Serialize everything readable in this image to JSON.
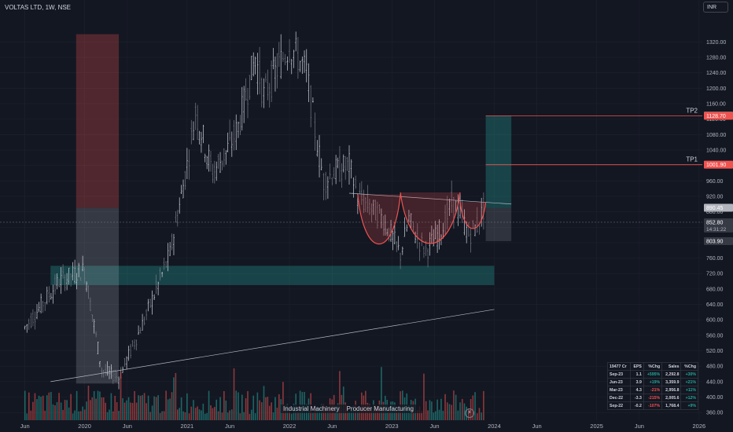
{
  "header": {
    "title": "VOLTAS LTD, 1W, NSE",
    "currency": "INR"
  },
  "colors": {
    "bg": "#131722",
    "up": "#26a69a",
    "down": "#ef5350",
    "grid": "#1e222d",
    "text": "#b2b5be"
  },
  "chart_data": {
    "type": "candlestick",
    "symbol": "VOLTAS LTD",
    "interval": "1W",
    "exchange": "NSE",
    "currency": "INR",
    "ylim": [
      340,
      1400
    ],
    "y_ticks": [
      360,
      400,
      440,
      480,
      520,
      560,
      600,
      640,
      680,
      720,
      760,
      800,
      840,
      880,
      920,
      960,
      1000,
      1040,
      1080,
      1120,
      1160,
      1200,
      1240,
      1280,
      1320
    ],
    "x_ticks": [
      "Jun",
      "2020",
      "Jun",
      "2021",
      "Jun",
      "2022",
      "Jun",
      "2023",
      "Jun",
      "2024",
      "Jun",
      "2025",
      "Jun",
      "2026"
    ],
    "key_points": [
      {
        "date": "2019-06",
        "price": 580
      },
      {
        "date": "2019-10",
        "price": 700
      },
      {
        "date": "2020-01",
        "price": 730
      },
      {
        "date": "2020-03",
        "price": 470
      },
      {
        "date": "2020-05",
        "price": 450
      },
      {
        "date": "2020-08",
        "price": 600
      },
      {
        "date": "2020-11",
        "price": 770
      },
      {
        "date": "2021-01",
        "price": 1000
      },
      {
        "date": "2021-02",
        "price": 1140
      },
      {
        "date": "2021-04",
        "price": 980
      },
      {
        "date": "2021-06",
        "price": 1050
      },
      {
        "date": "2021-07",
        "price": 1100
      },
      {
        "date": "2021-09",
        "price": 1280
      },
      {
        "date": "2021-10",
        "price": 1180
      },
      {
        "date": "2021-12",
        "price": 1270
      },
      {
        "date": "2022-01",
        "price": 1310
      },
      {
        "date": "2022-02",
        "price": 1280
      },
      {
        "date": "2022-03",
        "price": 1240
      },
      {
        "date": "2022-04",
        "price": 1090
      },
      {
        "date": "2022-05",
        "price": 960
      },
      {
        "date": "2022-06",
        "price": 980
      },
      {
        "date": "2022-08",
        "price": 1000
      },
      {
        "date": "2022-09",
        "price": 920
      },
      {
        "date": "2022-12",
        "price": 860
      },
      {
        "date": "2023-02",
        "price": 770
      },
      {
        "date": "2023-03",
        "price": 860
      },
      {
        "date": "2023-04",
        "price": 810
      },
      {
        "date": "2023-05",
        "price": 780
      },
      {
        "date": "2023-07",
        "price": 840
      },
      {
        "date": "2023-08",
        "price": 900
      },
      {
        "date": "2023-09",
        "price": 880
      },
      {
        "date": "2023-10",
        "price": 820
      },
      {
        "date": "2023-11",
        "price": 845
      },
      {
        "date": "2023-12",
        "price": 900
      }
    ],
    "levels": [
      {
        "label": "TP2",
        "price": 1128.7,
        "text": "1128.70"
      },
      {
        "label": "TP1",
        "price": 1001.9,
        "text": "1001.90"
      }
    ],
    "price_labels": [
      {
        "price": 1129.25,
        "text": "1129.25",
        "color": "#26a69a"
      },
      {
        "price": 1128.7,
        "text": "1128.70",
        "color": "#ef5350"
      },
      {
        "price": 1001.9,
        "text": "1001.90",
        "color": "#ef5350"
      },
      {
        "price": 890.45,
        "text": "890.45",
        "color": "#b2b5be"
      },
      {
        "price": 852.8,
        "text": "852.80",
        "sub": "14:31:22",
        "color": "#363a45"
      },
      {
        "price": 803.9,
        "text": "803.90",
        "color": "#363a45"
      }
    ],
    "zones": [
      {
        "name": "support-zone",
        "from": "2019-09",
        "to": "2024-01",
        "low": 690,
        "high": 740
      },
      {
        "name": "covid-drop-risk",
        "from": "2019-12",
        "to": "2020-05",
        "low": 890,
        "high": 1340
      },
      {
        "name": "covid-drop-range",
        "from": "2019-12",
        "to": "2020-05",
        "low": 435,
        "high": 890
      },
      {
        "name": "target-reward",
        "from": "2023-12",
        "to": "2024-03",
        "low": 890,
        "high": 1129
      },
      {
        "name": "target-stop",
        "from": "2023-12",
        "to": "2024-03",
        "low": 804,
        "high": 890
      }
    ],
    "grid": true
  },
  "eps_table": {
    "headers": [
      "19477 Cr",
      "EPS",
      "%Chg",
      "Sales",
      "%Chg"
    ],
    "rows": [
      {
        "period": "Sep-23",
        "eps": "1.1",
        "eps_chg": "+595%",
        "eps_dir": "pos",
        "sales": "2,292.8",
        "sales_chg": "+30%",
        "sales_dir": "pos"
      },
      {
        "period": "Jun-23",
        "eps": "3.9",
        "eps_chg": "+19%",
        "eps_dir": "pos",
        "sales": "3,359.9",
        "sales_chg": "+21%",
        "sales_dir": "pos"
      },
      {
        "period": "Mar-23",
        "eps": "4.3",
        "eps_chg": "-21%",
        "eps_dir": "neg",
        "sales": "2,956.8",
        "sales_chg": "+11%",
        "sales_dir": "pos"
      },
      {
        "period": "Dec-22",
        "eps": "-3.3",
        "eps_chg": "-215%",
        "eps_dir": "neg",
        "sales": "2,005.6",
        "sales_chg": "+12%",
        "sales_dir": "pos"
      },
      {
        "period": "Sep-22",
        "eps": "-0.2",
        "eps_chg": "-107%",
        "eps_dir": "neg",
        "sales": "1,768.4",
        "sales_chg": "+9%",
        "sales_dir": "pos"
      }
    ]
  },
  "sector": {
    "industry": "Industrial Machinery",
    "sector": "Producer Manufacturing"
  }
}
